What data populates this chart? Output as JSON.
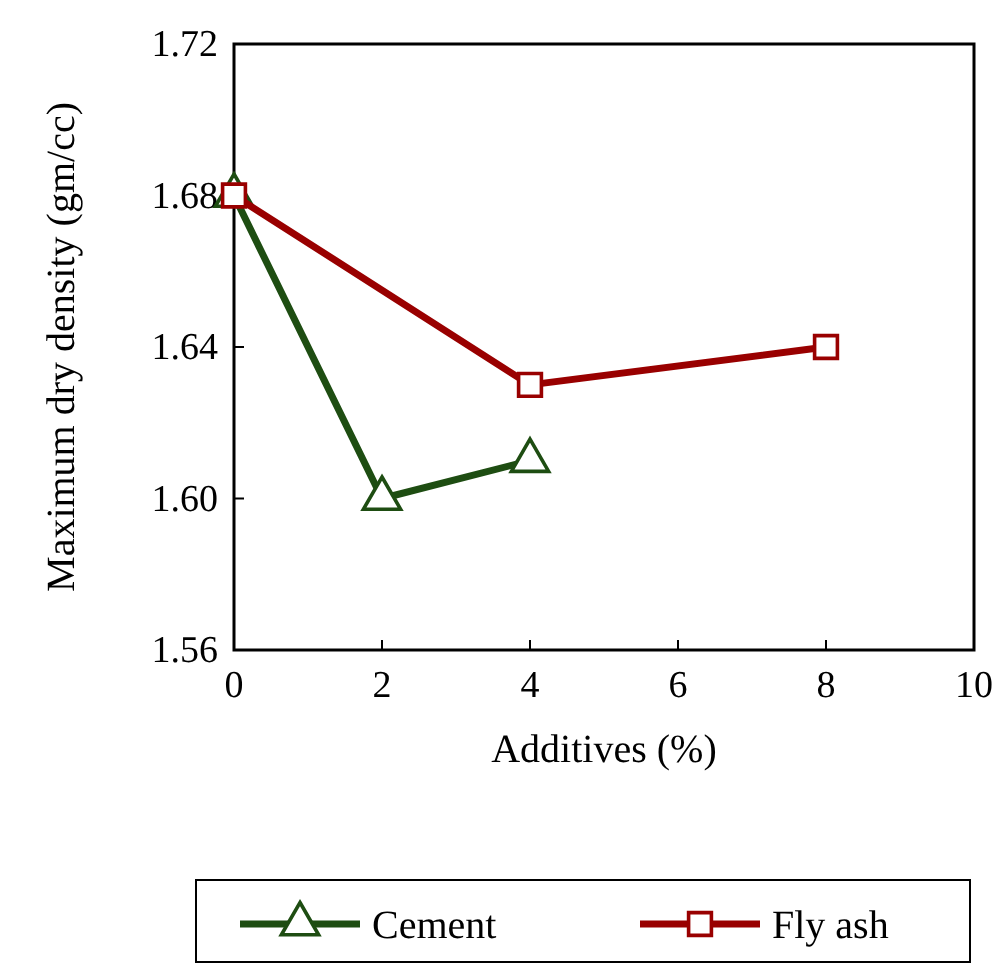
{
  "chart_data": {
    "type": "line",
    "xlabel": "Additives (%)",
    "ylabel": "Maximum dry density  (gm/cc)",
    "xlim": [
      0,
      10
    ],
    "xticks": [
      0,
      2,
      4,
      6,
      8,
      10
    ],
    "ylim": [
      1.56,
      1.72
    ],
    "yticks": [
      {
        "value": 1.56,
        "label": "1.56"
      },
      {
        "value": 1.6,
        "label": "1.60"
      },
      {
        "value": 1.64,
        "label": "1.64"
      },
      {
        "value": 1.68,
        "label": "1.68"
      },
      {
        "value": 1.72,
        "label": "1.72"
      }
    ],
    "grid": false,
    "legend": "bottom",
    "series": [
      {
        "name": "Cement",
        "color": "#1e4d12",
        "marker": "triangle",
        "x": [
          0,
          2,
          4
        ],
        "values": [
          1.68,
          1.6,
          1.61
        ]
      },
      {
        "name": "Fly ash",
        "color": "#990000",
        "marker": "square",
        "x": [
          0,
          4,
          8
        ],
        "values": [
          1.68,
          1.63,
          1.64
        ]
      }
    ]
  }
}
